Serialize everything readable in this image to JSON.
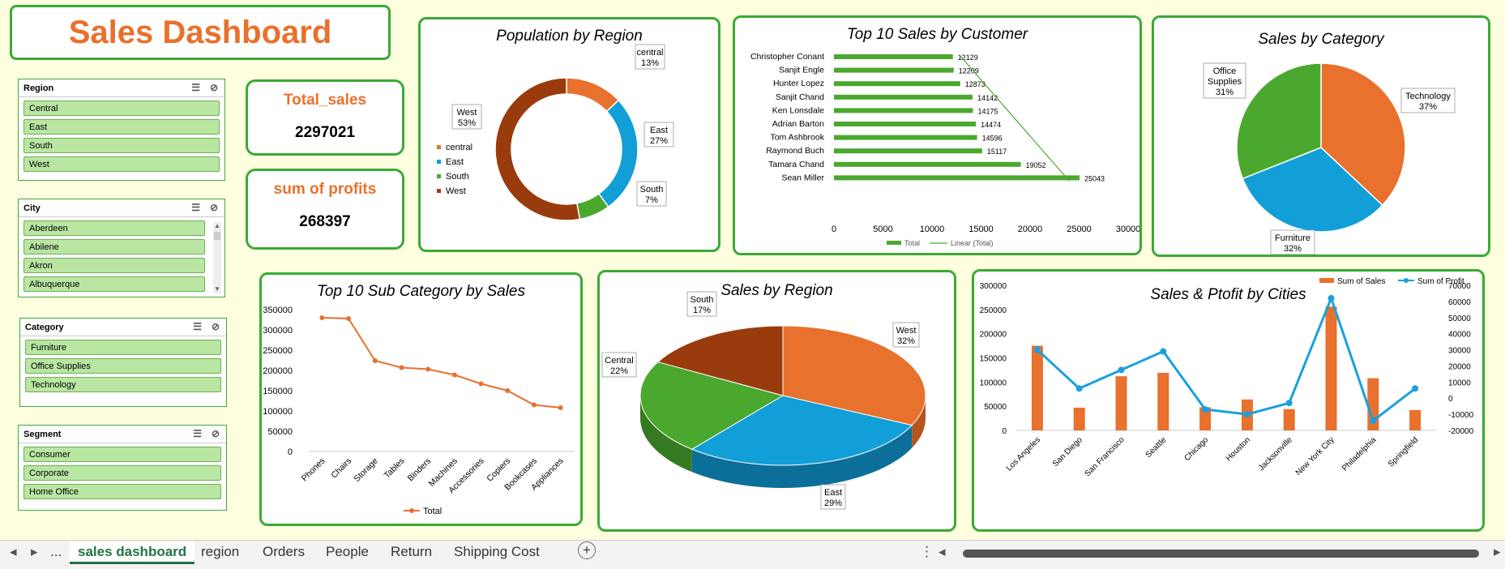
{
  "dashboard_title": "Sales Dashboard",
  "kpis": {
    "total_sales_label": "Total_sales",
    "total_sales_value": "2297021",
    "profit_label": "sum of profits",
    "profit_value": "268397"
  },
  "slicers": [
    {
      "title": "Region",
      "items": [
        "Central",
        "East",
        "South",
        "West"
      ]
    },
    {
      "title": "City",
      "items": [
        "Aberdeen",
        "Abilene",
        "Akron",
        "Albuquerque"
      ]
    },
    {
      "title": "Category",
      "items": [
        "Furniture",
        "Office Supplies",
        "Technology"
      ]
    },
    {
      "title": "Segment",
      "items": [
        "Consumer",
        "Corporate",
        "Home Office"
      ]
    }
  ],
  "tabs": [
    "sales dashboard",
    "region",
    "Orders",
    "People",
    "Return",
    "Shipping Cost"
  ],
  "nav": {
    "ellipsis": "...",
    "add": "+"
  },
  "colors": {
    "orange": "#e8712d",
    "blue": "#129fd8",
    "green": "#4aa82e",
    "brown": "#9a3b0e",
    "border": "#3aaa35"
  },
  "chart_data": [
    {
      "id": "pop",
      "type": "pie",
      "variant": "donut",
      "title": "Population by Region",
      "categories": [
        "central",
        "East",
        "South",
        "West"
      ],
      "values": [
        13,
        27,
        7,
        53
      ],
      "labels": [
        "13%",
        "27%",
        "7%",
        "53%"
      ],
      "colors": [
        "#e8712d",
        "#129fd8",
        "#4aa82e",
        "#9a3b0e"
      ],
      "legend": "left"
    },
    {
      "id": "top10cust",
      "type": "bar",
      "orientation": "horizontal",
      "title": "Top 10 Sales by Customer",
      "categories": [
        "Christopher Conant",
        "Sanjit Engle",
        "Hunter Lopez",
        "Sanjit Chand",
        "Ken Lonsdale",
        "Adrian Barton",
        "Tom Ashbrook",
        "Raymond Buch",
        "Tamara Chand",
        "Sean Miller"
      ],
      "values": [
        12129,
        12209,
        12873,
        14142,
        14175,
        14474,
        14596,
        15117,
        19052,
        25043
      ],
      "xticks": [
        "0",
        "5000",
        "10000",
        "15000",
        "20000",
        "25000",
        "30000"
      ],
      "xlim": [
        0,
        30000
      ],
      "legend_labels": [
        "Total",
        "Linear (Total)"
      ]
    },
    {
      "id": "cat",
      "type": "pie",
      "title": "Sales by Category",
      "categories": [
        "Technology",
        "Furniture",
        "Office Supplies"
      ],
      "values": [
        37,
        32,
        31
      ],
      "labels": [
        "37%",
        "32%",
        "31%"
      ],
      "colors": [
        "#e8712d",
        "#129fd8",
        "#4aa82e"
      ]
    },
    {
      "id": "subcat",
      "type": "line",
      "title": "Top 10 Sub Category by Sales",
      "categories": [
        "Phones",
        "Chairs",
        "Storage",
        "Tables",
        "Binders",
        "Machines",
        "Accessories",
        "Copiers",
        "Bookcases",
        "Appliances"
      ],
      "values": [
        330000,
        328000,
        224000,
        207000,
        203000,
        189000,
        167000,
        150000,
        115000,
        108000
      ],
      "yticks": [
        "0",
        "50000",
        "100000",
        "150000",
        "200000",
        "250000",
        "300000",
        "350000"
      ],
      "ylim": [
        0,
        350000
      ],
      "legend_labels": [
        "Total"
      ]
    },
    {
      "id": "region",
      "type": "pie",
      "variant": "3d",
      "title": "Sales by Region",
      "categories": [
        "West",
        "East",
        "Central",
        "South"
      ],
      "values": [
        32,
        29,
        22,
        17
      ],
      "labels": [
        "32%",
        "29%",
        "22%",
        "17%"
      ],
      "colors": [
        "#e8712d",
        "#129fd8",
        "#4aa82e",
        "#9a3b0e"
      ]
    },
    {
      "id": "cities",
      "type": "bar",
      "variant": "combo-bar-line",
      "title": "Sales & Ptofit by Cities",
      "categories": [
        "Los Angeles",
        "San Diego",
        "San Francisco",
        "Seattle",
        "Chicago",
        "Houston",
        "Jacksonville",
        "New York City",
        "Philadelphia",
        "Springfield"
      ],
      "series": [
        {
          "name": "Sum of Sales",
          "values": [
            175000,
            47000,
            112000,
            119000,
            48000,
            64000,
            44000,
            256000,
            108000,
            42000
          ]
        },
        {
          "name": "Sum of Profit",
          "values": [
            30000,
            6000,
            17500,
            29000,
            -7000,
            -10000,
            -3000,
            62000,
            -14000,
            6000
          ]
        }
      ],
      "yticks_left": [
        "0",
        "50000",
        "100000",
        "150000",
        "200000",
        "250000",
        "300000"
      ],
      "yticks_right": [
        "-20000",
        "-10000",
        "0",
        "10000",
        "20000",
        "30000",
        "40000",
        "50000",
        "60000",
        "70000"
      ],
      "ylim_left": [
        0,
        300000
      ],
      "ylim_right": [
        -20000,
        70000
      ]
    }
  ]
}
